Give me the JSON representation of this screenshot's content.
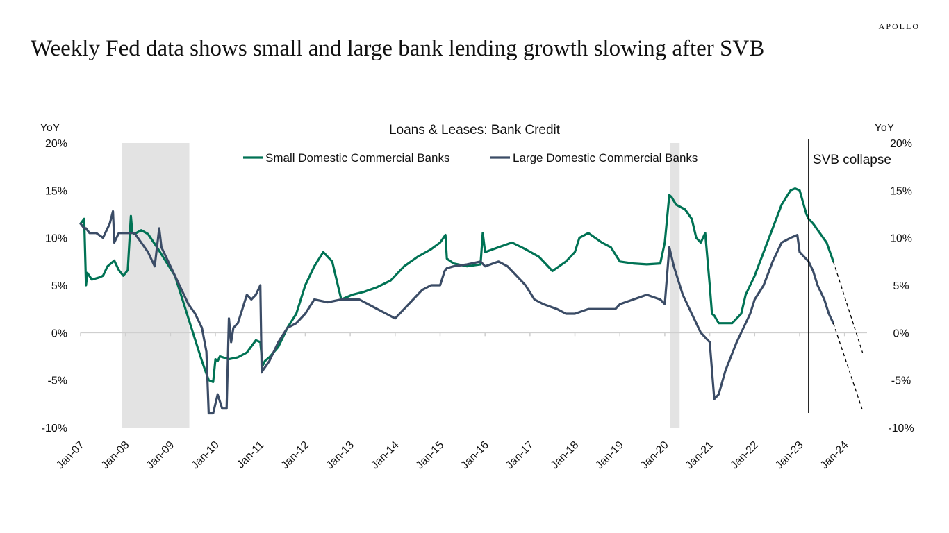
{
  "brand": "APOLLO",
  "page_title": "Weekly Fed data shows small and large bank lending growth slowing after SVB",
  "colors": {
    "small_banks": "#007254",
    "large_banks": "#3b4c66",
    "recession_shade": "#e3e3e3",
    "zero_line": "#cfcfcf"
  },
  "chart_data": {
    "type": "line",
    "title": "Loans & Leases: Bank Credit",
    "y_axis_label_left": "YoY",
    "y_axis_label_right": "YoY",
    "ylim": [
      -10,
      20
    ],
    "y_ticks": [
      20,
      15,
      10,
      5,
      0,
      -5,
      -10
    ],
    "y_tick_labels": [
      "20%",
      "15%",
      "10%",
      "5%",
      "0%",
      "-5%",
      "-10%"
    ],
    "xlim": [
      2007.0,
      2024.5
    ],
    "x_ticks": [
      2007,
      2008,
      2009,
      2010,
      2011,
      2012,
      2013,
      2014,
      2015,
      2016,
      2017,
      2018,
      2019,
      2020,
      2021,
      2022,
      2023,
      2024
    ],
    "x_tick_labels": [
      "Jan-07",
      "Jan-08",
      "Jan-09",
      "Jan-10",
      "Jan-11",
      "Jan-12",
      "Jan-13",
      "Jan-14",
      "Jan-15",
      "Jan-16",
      "Jan-17",
      "Jan-18",
      "Jan-19",
      "Jan-20",
      "Jan-21",
      "Jan-22",
      "Jan-23",
      "Jan-24"
    ],
    "legend_position": "top-center",
    "recession_bands": [
      {
        "start": 2007.92,
        "end": 2009.42
      },
      {
        "start": 2020.12,
        "end": 2020.33
      }
    ],
    "annotations": [
      {
        "text": "SVB collapse",
        "x": 2023.2
      }
    ],
    "series": [
      {
        "name": "Small Domestic Commercial Banks",
        "x": [
          2007.0,
          2007.08,
          2007.12,
          2007.15,
          2007.25,
          2007.4,
          2007.5,
          2007.6,
          2007.75,
          2007.85,
          2007.95,
          2008.05,
          2008.12,
          2008.15,
          2008.2,
          2008.35,
          2008.5,
          2008.7,
          2008.9,
          2009.1,
          2009.3,
          2009.5,
          2009.7,
          2009.85,
          2009.95,
          2010.0,
          2010.05,
          2010.1,
          2010.3,
          2010.5,
          2010.7,
          2010.9,
          2011.0,
          2011.05,
          2011.1,
          2011.2,
          2011.4,
          2011.6,
          2011.8,
          2012.0,
          2012.2,
          2012.4,
          2012.6,
          2012.8,
          2012.95,
          2013.0,
          2013.05,
          2013.3,
          2013.6,
          2013.9,
          2014.2,
          2014.5,
          2014.8,
          2015.0,
          2015.12,
          2015.15,
          2015.3,
          2015.6,
          2015.9,
          2015.95,
          2016.0,
          2016.3,
          2016.6,
          2016.9,
          2017.2,
          2017.5,
          2017.8,
          2018.0,
          2018.1,
          2018.3,
          2018.6,
          2018.8,
          2019.0,
          2019.3,
          2019.6,
          2019.9,
          2020.0,
          2020.1,
          2020.15,
          2020.25,
          2020.45,
          2020.6,
          2020.7,
          2020.8,
          2020.9,
          2021.0,
          2021.05,
          2021.1,
          2021.2,
          2021.5,
          2021.7,
          2021.8,
          2021.9,
          2022.0,
          2022.2,
          2022.4,
          2022.6,
          2022.8,
          2022.9,
          2023.0,
          2023.15,
          2023.2,
          2023.3,
          2023.45,
          2023.6,
          2023.75
        ],
        "values": [
          11.5,
          12.0,
          5.0,
          6.3,
          5.6,
          5.8,
          6.0,
          7.0,
          7.6,
          6.6,
          6.0,
          6.6,
          12.3,
          10.6,
          10.4,
          10.8,
          10.4,
          9.0,
          7.5,
          6.0,
          3.0,
          0.0,
          -3.0,
          -5.0,
          -5.2,
          -2.8,
          -3.0,
          -2.5,
          -2.8,
          -2.6,
          -2.1,
          -0.8,
          -1.0,
          -3.5,
          -3.0,
          -2.6,
          -1.5,
          0.5,
          2.0,
          5.0,
          7.0,
          8.5,
          7.5,
          3.5,
          3.8,
          3.9,
          4.0,
          4.3,
          4.8,
          5.5,
          7.0,
          8.0,
          8.8,
          9.5,
          10.3,
          7.8,
          7.3,
          7.0,
          7.2,
          10.5,
          8.5,
          9.0,
          9.5,
          8.8,
          8.0,
          6.5,
          7.5,
          8.5,
          10.0,
          10.5,
          9.5,
          9.0,
          7.5,
          7.3,
          7.2,
          7.3,
          9.5,
          14.5,
          14.3,
          13.5,
          13.0,
          12.0,
          10.0,
          9.5,
          10.5,
          5.0,
          2.0,
          1.8,
          1.0,
          1.0,
          2.0,
          4.0,
          5.0,
          6.0,
          8.5,
          11.0,
          13.5,
          15.0,
          15.2,
          15.0,
          12.5,
          12.0,
          11.5,
          10.5,
          9.5,
          7.5
        ],
        "projection": {
          "x": [
            2023.75,
            2024.4
          ],
          "values": [
            7.5,
            -2.1
          ]
        }
      },
      {
        "name": "Large Domestic Commercial Banks",
        "x": [
          2007.0,
          2007.08,
          2007.12,
          2007.2,
          2007.35,
          2007.5,
          2007.65,
          2007.72,
          2007.75,
          2007.85,
          2008.0,
          2008.2,
          2008.35,
          2008.5,
          2008.65,
          2008.75,
          2008.8,
          2008.9,
          2009.0,
          2009.2,
          2009.4,
          2009.55,
          2009.7,
          2009.8,
          2009.85,
          2009.95,
          2010.05,
          2010.15,
          2010.25,
          2010.3,
          2010.35,
          2010.4,
          2010.5,
          2010.6,
          2010.7,
          2010.8,
          2010.9,
          2011.0,
          2011.03,
          2011.05,
          2011.2,
          2011.4,
          2011.6,
          2011.8,
          2012.0,
          2012.2,
          2012.5,
          2012.8,
          2013.0,
          2013.2,
          2013.4,
          2013.6,
          2013.8,
          2014.0,
          2014.2,
          2014.4,
          2014.6,
          2014.8,
          2015.0,
          2015.1,
          2015.15,
          2015.3,
          2015.6,
          2015.9,
          2016.0,
          2016.3,
          2016.5,
          2016.7,
          2016.9,
          2017.1,
          2017.3,
          2017.6,
          2017.8,
          2018.0,
          2018.3,
          2018.6,
          2018.9,
          2019.0,
          2019.3,
          2019.6,
          2019.9,
          2020.0,
          2020.1,
          2020.2,
          2020.4,
          2020.6,
          2020.8,
          2021.0,
          2021.1,
          2021.2,
          2021.35,
          2021.6,
          2021.9,
          2022.0,
          2022.2,
          2022.4,
          2022.6,
          2022.8,
          2022.95,
          2023.0,
          2023.2,
          2023.3,
          2023.4,
          2023.55,
          2023.65,
          2023.75
        ],
        "values": [
          11.5,
          11.0,
          11.0,
          10.5,
          10.5,
          10.0,
          11.5,
          12.8,
          9.5,
          10.5,
          10.5,
          10.5,
          9.5,
          8.5,
          7.0,
          11.0,
          9.0,
          8.0,
          7.0,
          5.0,
          3.0,
          2.0,
          0.5,
          -2.0,
          -8.5,
          -8.5,
          -6.5,
          -8.0,
          -8.0,
          1.5,
          -1.0,
          0.5,
          1.0,
          2.5,
          4.0,
          3.5,
          4.0,
          5.0,
          -4.2,
          -4.0,
          -3.0,
          -1.0,
          0.5,
          1.0,
          2.0,
          3.5,
          3.2,
          3.5,
          3.5,
          3.5,
          3.0,
          2.5,
          2.0,
          1.5,
          2.5,
          3.5,
          4.5,
          5.0,
          5.0,
          6.5,
          6.8,
          7.0,
          7.2,
          7.5,
          7.0,
          7.5,
          7.0,
          6.0,
          5.0,
          3.5,
          3.0,
          2.5,
          2.0,
          2.0,
          2.5,
          2.5,
          2.5,
          3.0,
          3.5,
          4.0,
          3.5,
          3.0,
          9.0,
          7.0,
          4.0,
          2.0,
          0.0,
          -1.0,
          -7.0,
          -6.5,
          -4.0,
          -1.0,
          2.0,
          3.5,
          5.0,
          7.5,
          9.5,
          10.0,
          10.3,
          8.5,
          7.5,
          6.5,
          5.0,
          3.5,
          2.0,
          1.0
        ],
        "projection": {
          "x": [
            2023.75,
            2024.4
          ],
          "values": [
            1.0,
            -8.2
          ]
        }
      }
    ]
  }
}
